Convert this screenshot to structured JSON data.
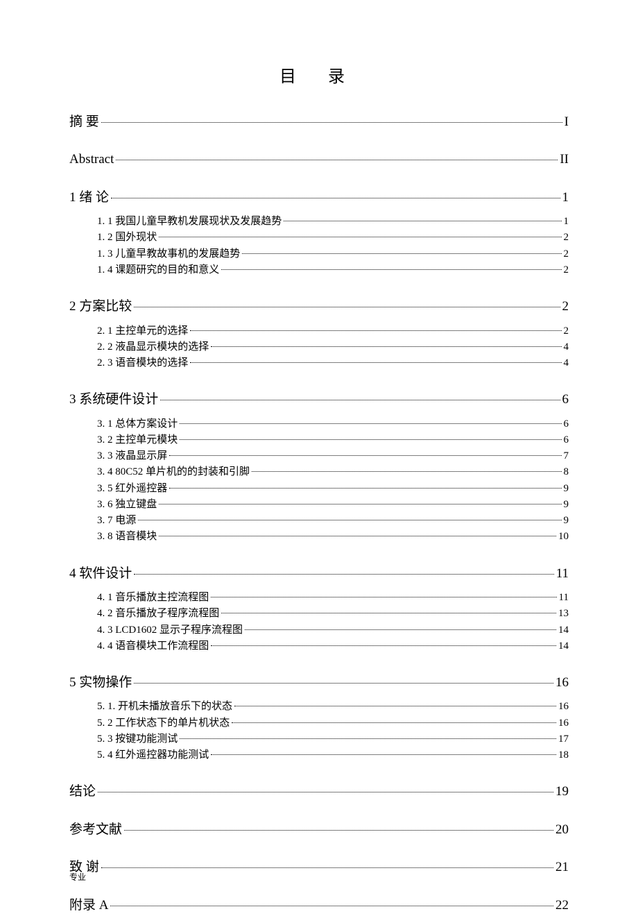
{
  "title": "目 录",
  "footer": "专业",
  "sections": [
    {
      "label": "摘    要",
      "page": "I",
      "wide": false,
      "subs": []
    },
    {
      "label": "Abstract",
      "page": "II",
      "subs": []
    },
    {
      "label": "1  绪  论",
      "page": "1",
      "subs": [
        {
          "label": "1. 1  我国儿童早教机发展现状及发展趋势",
          "page": "1"
        },
        {
          "label": "1. 2  国外现状",
          "page": "2"
        },
        {
          "label": "1. 3  儿童早教故事机的发展趋势",
          "page": "2"
        },
        {
          "label": "1. 4  课题研究的目的和意义  ",
          "page": "2"
        }
      ]
    },
    {
      "label": "2  方案比较",
      "page": "2",
      "subs": [
        {
          "label": "2. 1  主控单元的选择",
          "page": "2"
        },
        {
          "label": "2. 2  液晶显示模块的选择",
          "page": "4"
        },
        {
          "label": "2. 3  语音模块的选择",
          "page": "4"
        }
      ]
    },
    {
      "label": "3   系统硬件设计",
      "page": "6",
      "subs": [
        {
          "label": "3. 1  总体方案设计",
          "page": "6"
        },
        {
          "label": "3. 2  主控单元模块",
          "page": "6"
        },
        {
          "label": "3. 3  液晶显示屏",
          "page": "7"
        },
        {
          "label": "3. 4  80C52 单片机的的封装和引脚",
          "page": "8"
        },
        {
          "label": "3. 5  红外遥控器",
          "page": "9"
        },
        {
          "label": "3. 6  独立键盘",
          "page": "9"
        },
        {
          "label": "3. 7  电源",
          "page": "9"
        },
        {
          "label": "3. 8  语音模块",
          "page": "10"
        }
      ]
    },
    {
      "label": "4  软件设计",
      "page": "11",
      "subs": [
        {
          "label": "4. 1  音乐播放主控流程图",
          "page": "11"
        },
        {
          "label": "4. 2  音乐播放子程序流程图",
          "page": "13"
        },
        {
          "label": "4. 3  LCD1602 显示子程序流程图",
          "page": "14"
        },
        {
          "label": "4. 4  语音模块工作流程图",
          "page": "14"
        }
      ]
    },
    {
      "label": "5  实物操作",
      "page": "16",
      "subs": [
        {
          "label": "5. 1. 开机未播放音乐下的状态",
          "page": "16"
        },
        {
          "label": "5. 2 工作状态下的单片机状态",
          "page": "16"
        },
        {
          "label": "5. 3  按键功能测试",
          "page": "17"
        },
        {
          "label": "5. 4  红外遥控器功能测试",
          "page": "18"
        }
      ]
    },
    {
      "label": "结论",
      "page": "19",
      "subs": []
    },
    {
      "label": "参考文献",
      "page": "20",
      "subs": []
    },
    {
      "label": "致    谢",
      "page": "21",
      "subs": []
    },
    {
      "label": "附录 A",
      "page": "22",
      "subs": []
    }
  ]
}
